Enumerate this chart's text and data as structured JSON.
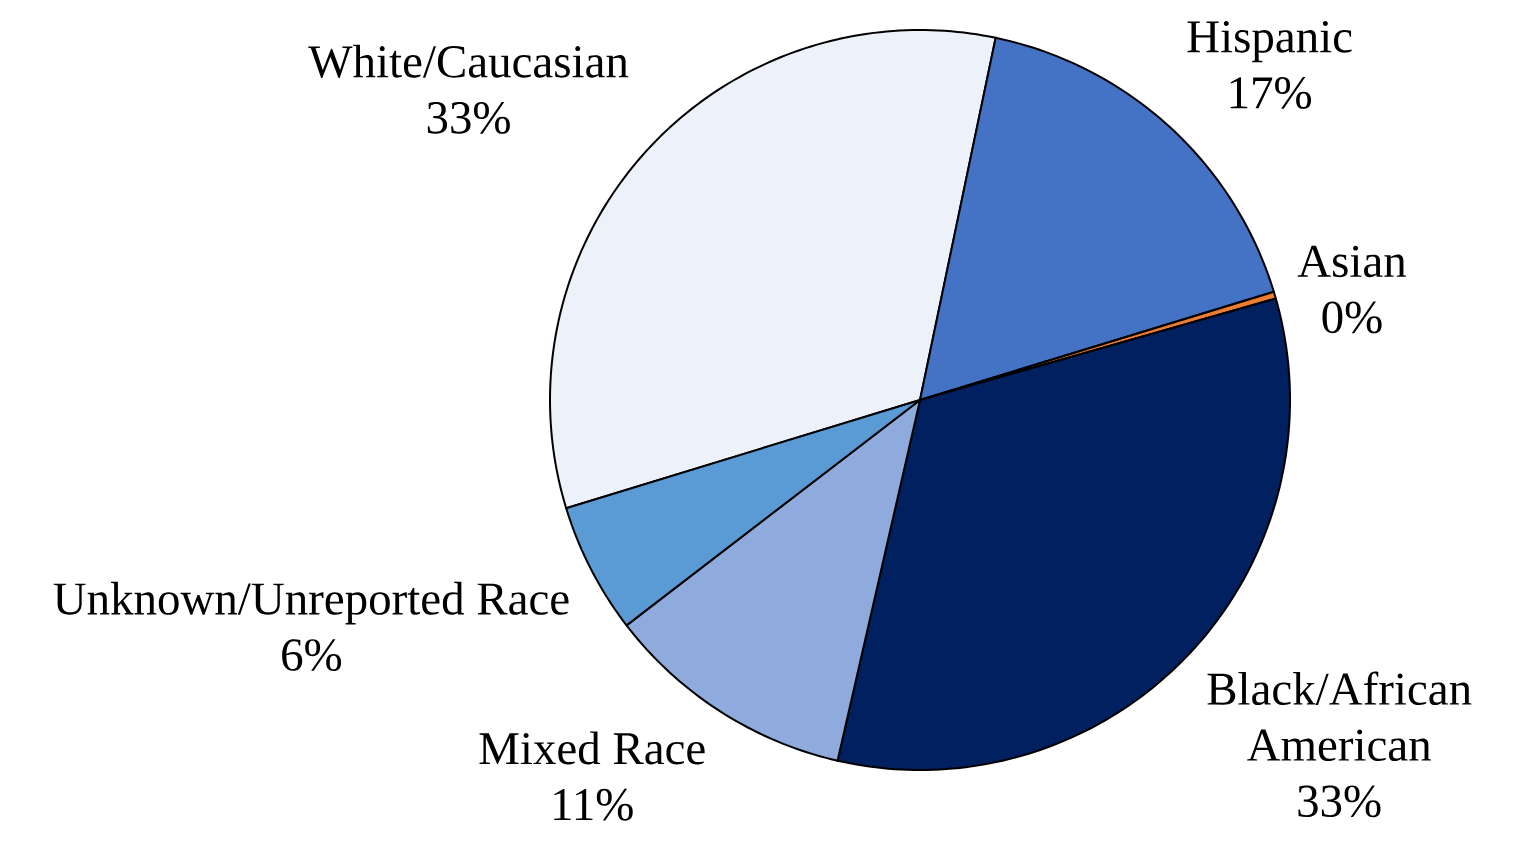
{
  "chart_data": {
    "type": "pie",
    "categories": [
      "White/Caucasian",
      "Hispanic",
      "Asian",
      "Black/African American",
      "Mixed Race",
      "Unknown/Unreported Race"
    ],
    "values": [
      33,
      17,
      0.3,
      33,
      11,
      5.7
    ],
    "value_labels": [
      "33%",
      "17%",
      "0%",
      "33%",
      "11%",
      "6%"
    ],
    "colors": [
      "#edf2fa",
      "#4472c4",
      "#ed7d31",
      "#002060",
      "#8faadc",
      "#5b9bd5"
    ]
  }
}
